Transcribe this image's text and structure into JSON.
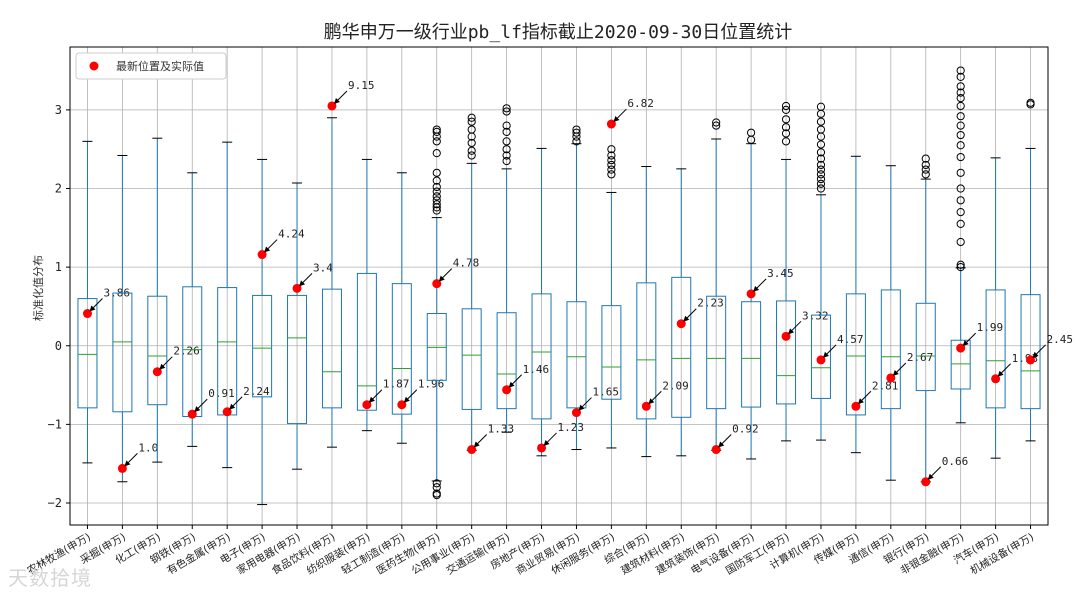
{
  "chart_data": {
    "type": "box",
    "title": "鹏华申万一级行业pb_lf指标截止2020-09-30日位置统计",
    "ylabel": "标准化值分布",
    "xlabel": "",
    "ylim": [
      -2.28,
      3.8
    ],
    "yticks": [
      -2,
      -1,
      0,
      1,
      2,
      3
    ],
    "grid": true,
    "legend": {
      "label": "最新位置及实际值",
      "placement": "top-left"
    },
    "colors": {
      "box": "#1f77b4",
      "median": "#2ca02c",
      "point": "#ff0000",
      "flier": "#000000",
      "grid": "#b0b0b0"
    },
    "series": [
      {
        "cat": "农林牧渔(申万)",
        "wl": -1.49,
        "q1": -0.79,
        "med": -0.11,
        "q3": 0.6,
        "wh": 2.6,
        "fliers": [],
        "latest": 0.41,
        "label": "3.86"
      },
      {
        "cat": "采掘(申万)",
        "wl": -1.73,
        "q1": -0.84,
        "med": 0.05,
        "q3": 0.67,
        "wh": 2.42,
        "fliers": [],
        "latest": -1.56,
        "label": "1.0"
      },
      {
        "cat": "化工(申万)",
        "wl": -1.48,
        "q1": -0.75,
        "med": -0.13,
        "q3": 0.63,
        "wh": 2.64,
        "fliers": [],
        "latest": -0.33,
        "label": "2.26"
      },
      {
        "cat": "钢铁(申万)",
        "wl": -1.28,
        "q1": -0.9,
        "med": -0.05,
        "q3": 0.75,
        "wh": 2.2,
        "fliers": [],
        "latest": -0.87,
        "label": "0.91"
      },
      {
        "cat": "有色金属(申万)",
        "wl": -1.55,
        "q1": -0.88,
        "med": 0.05,
        "q3": 0.74,
        "wh": 2.59,
        "fliers": [],
        "latest": -0.84,
        "label": "2.24"
      },
      {
        "cat": "电子(申万)",
        "wl": -2.02,
        "q1": -0.65,
        "med": -0.03,
        "q3": 0.64,
        "wh": 2.37,
        "fliers": [],
        "latest": 1.16,
        "label": "4.24"
      },
      {
        "cat": "家用电器(申万)",
        "wl": -1.57,
        "q1": -0.99,
        "med": 0.1,
        "q3": 0.64,
        "wh": 2.07,
        "fliers": [],
        "latest": 0.73,
        "label": "3.4"
      },
      {
        "cat": "食品饮料(申万)",
        "wl": -1.29,
        "q1": -0.79,
        "med": -0.33,
        "q3": 0.72,
        "wh": 2.9,
        "fliers": [
          3.05
        ],
        "latest": 3.05,
        "label": "9.15"
      },
      {
        "cat": "纺织服装(申万)",
        "wl": -1.08,
        "q1": -0.82,
        "med": -0.51,
        "q3": 0.92,
        "wh": 2.37,
        "fliers": [],
        "latest": -0.75,
        "label": "1.87"
      },
      {
        "cat": "轻工制造(申万)",
        "wl": -1.24,
        "q1": -0.87,
        "med": -0.29,
        "q3": 0.79,
        "wh": 2.2,
        "fliers": [],
        "latest": -0.75,
        "label": "1.96"
      },
      {
        "cat": "医药生物(申万)",
        "wl": -1.72,
        "q1": -0.44,
        "med": -0.02,
        "q3": 0.41,
        "wh": 1.63,
        "fliers": [
          2.75,
          2.72,
          2.66,
          2.6,
          2.45,
          2.2,
          2.1,
          2.02,
          1.96,
          1.9,
          1.85,
          1.8,
          1.76,
          1.72,
          -1.75,
          -1.8,
          -1.88,
          -1.9
        ],
        "latest": 0.79,
        "label": "4.78"
      },
      {
        "cat": "公用事业(申万)",
        "wl": -1.33,
        "q1": -0.81,
        "med": -0.12,
        "q3": 0.47,
        "wh": 2.32,
        "fliers": [
          2.9,
          2.85,
          2.75,
          2.66,
          2.58,
          2.48,
          2.42
        ],
        "latest": -1.32,
        "label": "1.33"
      },
      {
        "cat": "交通运输(申万)",
        "wl": -1.1,
        "q1": -0.8,
        "med": -0.36,
        "q3": 0.42,
        "wh": 2.25,
        "fliers": [
          3.02,
          2.98,
          2.8,
          2.72,
          2.6,
          2.5,
          2.42,
          2.35
        ],
        "latest": -0.56,
        "label": "1.46"
      },
      {
        "cat": "房地产(申万)",
        "wl": -1.4,
        "q1": -0.93,
        "med": -0.08,
        "q3": 0.66,
        "wh": 2.51,
        "fliers": [],
        "latest": -1.3,
        "label": "1.23"
      },
      {
        "cat": "商业贸易(申万)",
        "wl": -1.32,
        "q1": -0.79,
        "med": -0.14,
        "q3": 0.56,
        "wh": 2.57,
        "fliers": [
          2.75,
          2.71,
          2.66,
          2.6
        ],
        "latest": -0.85,
        "label": "1.65"
      },
      {
        "cat": "休闲服务(申万)",
        "wl": -1.3,
        "q1": -0.68,
        "med": -0.27,
        "q3": 0.51,
        "wh": 1.95,
        "fliers": [
          2.82,
          2.5,
          2.42,
          2.36,
          2.3,
          2.24,
          2.18
        ],
        "latest": 2.82,
        "label": "6.82"
      },
      {
        "cat": "综合(申万)",
        "wl": -1.41,
        "q1": -0.93,
        "med": -0.18,
        "q3": 0.8,
        "wh": 2.28,
        "fliers": [],
        "latest": -0.77,
        "label": "2.09"
      },
      {
        "cat": "建筑材料(申万)",
        "wl": -1.4,
        "q1": -0.91,
        "med": -0.16,
        "q3": 0.87,
        "wh": 2.25,
        "fliers": [],
        "latest": 0.28,
        "label": "2.23"
      },
      {
        "cat": "建筑装饰(申万)",
        "wl": -1.33,
        "q1": -0.8,
        "med": -0.16,
        "q3": 0.63,
        "wh": 2.63,
        "fliers": [
          2.84,
          2.8
        ],
        "latest": -1.32,
        "label": "0.92"
      },
      {
        "cat": "电气设备(申万)",
        "wl": -1.44,
        "q1": -0.78,
        "med": -0.16,
        "q3": 0.56,
        "wh": 2.57,
        "fliers": [
          2.71,
          2.62
        ],
        "latest": 0.66,
        "label": "3.45"
      },
      {
        "cat": "国防军工(申万)",
        "wl": -1.21,
        "q1": -0.74,
        "med": -0.38,
        "q3": 0.57,
        "wh": 2.37,
        "fliers": [
          3.05,
          3.0,
          2.88,
          2.78,
          2.7,
          2.6
        ],
        "latest": 0.12,
        "label": "3.32"
      },
      {
        "cat": "计算机(申万)",
        "wl": -1.2,
        "q1": -0.67,
        "med": -0.28,
        "q3": 0.39,
        "wh": 1.92,
        "fliers": [
          3.04,
          2.95,
          2.85,
          2.75,
          2.66,
          2.56,
          2.46,
          2.38,
          2.3,
          2.24,
          2.18,
          2.12,
          2.06,
          2.0
        ],
        "latest": -0.18,
        "label": "4.57"
      },
      {
        "cat": "传媒(申万)",
        "wl": -1.36,
        "q1": -0.88,
        "med": -0.13,
        "q3": 0.66,
        "wh": 2.41,
        "fliers": [],
        "latest": -0.77,
        "label": "2.81"
      },
      {
        "cat": "通信(申万)",
        "wl": -1.71,
        "q1": -0.8,
        "med": -0.14,
        "q3": 0.71,
        "wh": 2.29,
        "fliers": [],
        "latest": -0.41,
        "label": "2.67"
      },
      {
        "cat": "银行(申万)",
        "wl": -1.73,
        "q1": -0.57,
        "med": -0.13,
        "q3": 0.54,
        "wh": 2.12,
        "fliers": [
          2.38,
          2.3,
          2.24,
          2.18
        ],
        "latest": -1.73,
        "label": "0.66"
      },
      {
        "cat": "非银金融(申万)",
        "wl": -0.98,
        "q1": -0.55,
        "med": -0.23,
        "q3": 0.07,
        "wh": 0.99,
        "fliers": [
          3.5,
          3.42,
          3.3,
          3.22,
          3.15,
          3.05,
          2.92,
          2.8,
          2.68,
          2.55,
          2.4,
          2.2,
          2.0,
          1.85,
          1.7,
          1.55,
          1.32,
          1.03,
          1.0
        ],
        "latest": -0.03,
        "label": "1.99"
      },
      {
        "cat": "汽车(申万)",
        "wl": -1.43,
        "q1": -0.79,
        "med": -0.19,
        "q3": 0.71,
        "wh": 2.39,
        "fliers": [],
        "latest": -0.42,
        "label": "1.93"
      },
      {
        "cat": "机械设备(申万)",
        "wl": -1.21,
        "q1": -0.8,
        "med": -0.32,
        "q3": 0.65,
        "wh": 2.51,
        "fliers": [
          3.09,
          3.07
        ],
        "latest": -0.18,
        "label": "2.45"
      }
    ]
  },
  "watermark": "天数拾境"
}
